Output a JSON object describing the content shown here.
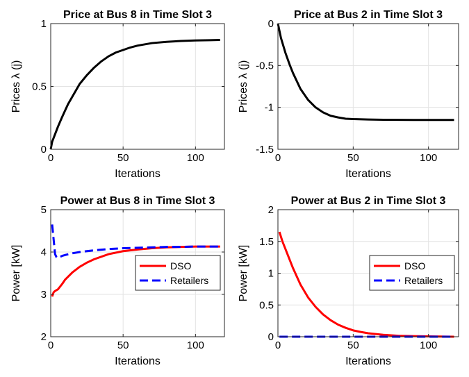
{
  "chart_data": [
    {
      "type": "line",
      "title": "Price at Bus 8 in Time Slot 3",
      "xlabel": "Iterations",
      "ylabel": "Prices λ (j)",
      "xlim": [
        0,
        120
      ],
      "ylim": [
        0,
        1
      ],
      "xticks": [
        "0",
        "50",
        "100"
      ],
      "xtick_values": [
        0,
        50,
        100
      ],
      "yticks": [
        "0",
        "0.5",
        "1"
      ],
      "ytick_values": [
        0,
        0.5,
        1
      ],
      "grid": true,
      "series": [
        {
          "color": "#000000",
          "dash": "solid",
          "x": [
            0,
            1,
            2,
            3,
            5,
            8,
            10,
            12,
            15,
            20,
            25,
            30,
            35,
            40,
            45,
            50,
            55,
            60,
            70,
            80,
            90,
            100,
            110,
            117
          ],
          "y": [
            0,
            0.06,
            0.09,
            0.12,
            0.18,
            0.26,
            0.31,
            0.36,
            0.42,
            0.52,
            0.59,
            0.65,
            0.7,
            0.74,
            0.77,
            0.79,
            0.81,
            0.825,
            0.845,
            0.855,
            0.862,
            0.866,
            0.868,
            0.87
          ]
        }
      ]
    },
    {
      "type": "line",
      "title": "Price at Bus 2 in Time Slot 3",
      "xlabel": "Iterations",
      "ylabel": "Prices λ (j)",
      "xlim": [
        0,
        120
      ],
      "ylim": [
        -1.5,
        0
      ],
      "xticks": [
        "0",
        "50",
        "100"
      ],
      "xtick_values": [
        0,
        50,
        100
      ],
      "yticks": [
        "-1.5",
        "-1",
        "-0.5",
        "0"
      ],
      "ytick_values": [
        -1.5,
        -1,
        -0.5,
        0
      ],
      "grid": true,
      "series": [
        {
          "color": "#000000",
          "dash": "solid",
          "x": [
            0,
            2,
            5,
            8,
            10,
            15,
            20,
            25,
            30,
            35,
            40,
            45,
            50,
            60,
            70,
            80,
            90,
            100,
            117
          ],
          "y": [
            0,
            -0.17,
            -0.35,
            -0.5,
            -0.59,
            -0.78,
            -0.91,
            -1.0,
            -1.06,
            -1.1,
            -1.12,
            -1.135,
            -1.14,
            -1.145,
            -1.148,
            -1.149,
            -1.15,
            -1.15,
            -1.15
          ]
        }
      ]
    },
    {
      "type": "line",
      "title": "Power at Bus 8 in Time Slot 3",
      "xlabel": "Iterations",
      "ylabel": "Power [kW]",
      "xlim": [
        0,
        120
      ],
      "ylim": [
        2,
        5
      ],
      "xticks": [
        "0",
        "50",
        "100"
      ],
      "xtick_values": [
        0,
        50,
        100
      ],
      "yticks": [
        "2",
        "3",
        "4",
        "5"
      ],
      "ytick_values": [
        2,
        3,
        4,
        5
      ],
      "grid": true,
      "legend": {
        "position": "right",
        "entries": [
          "DSO",
          "Retailers"
        ]
      },
      "series": [
        {
          "name": "DSO",
          "color": "#ff0000",
          "dash": "solid",
          "x": [
            1,
            2,
            3,
            5,
            8,
            10,
            15,
            20,
            25,
            30,
            40,
            50,
            60,
            70,
            80,
            90,
            100,
            117
          ],
          "y": [
            2.95,
            3.05,
            3.08,
            3.12,
            3.25,
            3.35,
            3.52,
            3.65,
            3.75,
            3.83,
            3.95,
            4.02,
            4.06,
            4.09,
            4.11,
            4.12,
            4.13,
            4.13
          ]
        },
        {
          "name": "Retailers",
          "color": "#0000ff",
          "dash": "dashed",
          "x": [
            1,
            2,
            3,
            4,
            5,
            6,
            8,
            10,
            15,
            20,
            30,
            40,
            50,
            60,
            70,
            80,
            90,
            100,
            117
          ],
          "y": [
            4.65,
            4.3,
            3.95,
            3.88,
            3.86,
            3.88,
            3.91,
            3.93,
            3.97,
            4.0,
            4.04,
            4.07,
            4.09,
            4.1,
            4.11,
            4.12,
            4.12,
            4.13,
            4.13
          ]
        }
      ]
    },
    {
      "type": "line",
      "title": "Power at Bus 2 in Time Slot 3",
      "xlabel": "Iterations",
      "ylabel": "Power [kW]",
      "xlim": [
        0,
        120
      ],
      "ylim": [
        0,
        2
      ],
      "xticks": [
        "0",
        "50",
        "100"
      ],
      "xtick_values": [
        0,
        50,
        100
      ],
      "yticks": [
        "0",
        "0.5",
        "1",
        "1.5",
        "2"
      ],
      "ytick_values": [
        0,
        0.5,
        1,
        1.5,
        2
      ],
      "grid": true,
      "legend": {
        "position": "right",
        "entries": [
          "DSO",
          "Retailers"
        ]
      },
      "series": [
        {
          "name": "DSO",
          "color": "#ff0000",
          "dash": "solid",
          "x": [
            1,
            3,
            5,
            8,
            10,
            15,
            20,
            25,
            30,
            35,
            40,
            45,
            50,
            55,
            60,
            70,
            80,
            90,
            100,
            117
          ],
          "y": [
            1.65,
            1.5,
            1.38,
            1.2,
            1.08,
            0.82,
            0.62,
            0.47,
            0.35,
            0.26,
            0.19,
            0.14,
            0.1,
            0.075,
            0.055,
            0.03,
            0.015,
            0.01,
            0.005,
            0.0
          ]
        },
        {
          "name": "Retailers",
          "color": "#0000ff",
          "dash": "dashed",
          "x": [
            1,
            117
          ],
          "y": [
            0.0,
            0.0
          ]
        }
      ]
    }
  ]
}
